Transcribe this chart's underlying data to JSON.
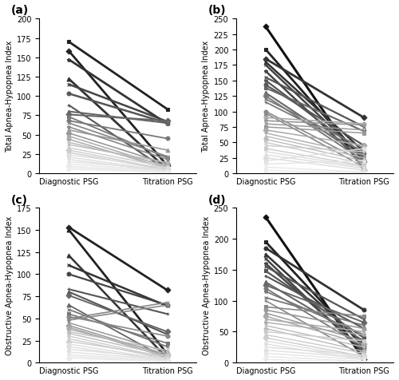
{
  "panels": [
    {
      "label": "(a)",
      "ylabel": "Total Apnea-Hypopnea Index",
      "ylim": [
        0,
        200
      ],
      "yticks": [
        0,
        25,
        50,
        75,
        100,
        125,
        150,
        175,
        200
      ],
      "series": [
        {
          "diag": 170,
          "titr": 83,
          "marker": "s",
          "color": "#222222",
          "lw": 2.0
        },
        {
          "diag": 158,
          "titr": 10,
          "marker": "D",
          "color": "#222222",
          "lw": 2.0
        },
        {
          "diag": 147,
          "titr": 64,
          "marker": "*",
          "color": "#333333",
          "lw": 2.0
        },
        {
          "diag": 122,
          "titr": 5,
          "marker": "^",
          "color": "#333333",
          "lw": 2.0
        },
        {
          "diag": 115,
          "titr": 67,
          "marker": "x",
          "color": "#444444",
          "lw": 1.8
        },
        {
          "diag": 103,
          "titr": 65,
          "marker": "o",
          "color": "#555555",
          "lw": 1.8
        },
        {
          "diag": 88,
          "titr": 4,
          "marker": "+",
          "color": "#555555",
          "lw": 1.5
        },
        {
          "diag": 80,
          "titr": 65,
          "marker": "^",
          "color": "#666666",
          "lw": 1.5
        },
        {
          "diag": 76,
          "titr": 68,
          "marker": "D",
          "color": "#666666",
          "lw": 1.5
        },
        {
          "diag": 73,
          "titr": 20,
          "marker": "s",
          "color": "#777777",
          "lw": 1.3
        },
        {
          "diag": 68,
          "titr": 45,
          "marker": "o",
          "color": "#777777",
          "lw": 1.3
        },
        {
          "diag": 65,
          "titr": 22,
          "marker": "x",
          "color": "#888888",
          "lw": 1.3
        },
        {
          "diag": 60,
          "titr": 18,
          "marker": "*",
          "color": "#888888",
          "lw": 1.2
        },
        {
          "diag": 56,
          "titr": 30,
          "marker": "^",
          "color": "#999999",
          "lw": 1.2
        },
        {
          "diag": 52,
          "titr": 12,
          "marker": "D",
          "color": "#999999",
          "lw": 1.2
        },
        {
          "diag": 48,
          "titr": 8,
          "marker": "s",
          "color": "#aaaaaa",
          "lw": 1.1
        },
        {
          "diag": 44,
          "titr": 6,
          "marker": "o",
          "color": "#aaaaaa",
          "lw": 1.1
        },
        {
          "diag": 40,
          "titr": 10,
          "marker": "+",
          "color": "#bbbbbb",
          "lw": 1.1
        },
        {
          "diag": 37,
          "titr": 14,
          "marker": "x",
          "color": "#bbbbbb",
          "lw": 1.0
        },
        {
          "diag": 33,
          "titr": 8,
          "marker": "^",
          "color": "#cccccc",
          "lw": 1.0
        },
        {
          "diag": 30,
          "titr": 5,
          "marker": "D",
          "color": "#cccccc",
          "lw": 1.0
        },
        {
          "diag": 27,
          "titr": 4,
          "marker": "s",
          "color": "#cccccc",
          "lw": 1.0
        },
        {
          "diag": 24,
          "titr": 7,
          "marker": "o",
          "color": "#dddddd",
          "lw": 1.0
        },
        {
          "diag": 21,
          "titr": 3,
          "marker": "*",
          "color": "#dddddd",
          "lw": 1.0
        },
        {
          "diag": 18,
          "titr": 2,
          "marker": "x",
          "color": "#dddddd",
          "lw": 1.0
        },
        {
          "diag": 15,
          "titr": 5,
          "marker": "+",
          "color": "#e0e0e0",
          "lw": 1.0
        },
        {
          "diag": 12,
          "titr": 3,
          "marker": "^",
          "color": "#e5e5e5",
          "lw": 1.0
        },
        {
          "diag": 9,
          "titr": 2,
          "marker": "D",
          "color": "#e8e8e8",
          "lw": 1.0
        },
        {
          "diag": 7,
          "titr": 1,
          "marker": "s",
          "color": "#ebebeb",
          "lw": 1.0
        },
        {
          "diag": 5,
          "titr": 1,
          "marker": "o",
          "color": "#eeeeee",
          "lw": 1.0
        }
      ]
    },
    {
      "label": "(b)",
      "ylabel": "Total Apnea-Hypopnea Index",
      "ylim": [
        0,
        250
      ],
      "yticks": [
        0,
        25,
        50,
        75,
        100,
        125,
        150,
        175,
        200,
        225,
        250
      ],
      "series": [
        {
          "diag": 237,
          "titr": 5,
          "marker": "D",
          "color": "#111111",
          "lw": 2.2
        },
        {
          "diag": 200,
          "titr": 20,
          "marker": "s",
          "color": "#222222",
          "lw": 2.0
        },
        {
          "diag": 185,
          "titr": 90,
          "marker": "D",
          "color": "#333333",
          "lw": 2.0
        },
        {
          "diag": 180,
          "titr": 35,
          "marker": "^",
          "color": "#333333",
          "lw": 1.8
        },
        {
          "diag": 175,
          "titr": 25,
          "marker": "x",
          "color": "#444444",
          "lw": 1.8
        },
        {
          "diag": 165,
          "titr": 15,
          "marker": "*",
          "color": "#444444",
          "lw": 1.8
        },
        {
          "diag": 155,
          "titr": 75,
          "marker": "x",
          "color": "#555555",
          "lw": 1.6
        },
        {
          "diag": 150,
          "titr": 30,
          "marker": "*",
          "color": "#555555",
          "lw": 1.6
        },
        {
          "diag": 143,
          "titr": 45,
          "marker": "o",
          "color": "#555555",
          "lw": 1.5
        },
        {
          "diag": 138,
          "titr": 68,
          "marker": "s",
          "color": "#666666",
          "lw": 1.5
        },
        {
          "diag": 130,
          "titr": 25,
          "marker": "^",
          "color": "#666666",
          "lw": 1.5
        },
        {
          "diag": 125,
          "titr": 20,
          "marker": "D",
          "color": "#777777",
          "lw": 1.4
        },
        {
          "diag": 120,
          "titr": 40,
          "marker": "x",
          "color": "#777777",
          "lw": 1.3
        },
        {
          "diag": 115,
          "titr": 35,
          "marker": "+",
          "color": "#777777",
          "lw": 1.3
        },
        {
          "diag": 100,
          "titr": 18,
          "marker": "o",
          "color": "#888888",
          "lw": 1.2
        },
        {
          "diag": 97,
          "titr": 10,
          "marker": "^",
          "color": "#888888",
          "lw": 1.2
        },
        {
          "diag": 90,
          "titr": 80,
          "marker": "o",
          "color": "#aaaaaa",
          "lw": 1.2
        },
        {
          "diag": 85,
          "titr": 78,
          "marker": "*",
          "color": "#999999",
          "lw": 1.2
        },
        {
          "diag": 80,
          "titr": 70,
          "marker": "x",
          "color": "#999999",
          "lw": 1.1
        },
        {
          "diag": 75,
          "titr": 65,
          "marker": "s",
          "color": "#999999",
          "lw": 1.1
        },
        {
          "diag": 70,
          "titr": 45,
          "marker": "D",
          "color": "#aaaaaa",
          "lw": 1.1
        },
        {
          "diag": 65,
          "titr": 30,
          "marker": "+",
          "color": "#aaaaaa",
          "lw": 1.0
        },
        {
          "diag": 60,
          "titr": 25,
          "marker": "^",
          "color": "#bbbbbb",
          "lw": 1.0
        },
        {
          "diag": 55,
          "titr": 20,
          "marker": "o",
          "color": "#bbbbbb",
          "lw": 1.0
        },
        {
          "diag": 50,
          "titr": 15,
          "marker": "*",
          "color": "#cccccc",
          "lw": 1.0
        },
        {
          "diag": 45,
          "titr": 35,
          "marker": "x",
          "color": "#cccccc",
          "lw": 1.0
        },
        {
          "diag": 40,
          "titr": 12,
          "marker": "s",
          "color": "#cccccc",
          "lw": 1.0
        },
        {
          "diag": 35,
          "titr": 10,
          "marker": "+",
          "color": "#dddddd",
          "lw": 1.0
        },
        {
          "diag": 30,
          "titr": 8,
          "marker": "^",
          "color": "#dddddd",
          "lw": 1.0
        },
        {
          "diag": 25,
          "titr": 5,
          "marker": "D",
          "color": "#dddddd",
          "lw": 1.0
        },
        {
          "diag": 20,
          "titr": 40,
          "marker": "o",
          "color": "#e0e0e0",
          "lw": 1.0
        },
        {
          "diag": 15,
          "titr": 20,
          "marker": "*",
          "color": "#e5e5e5",
          "lw": 1.0
        },
        {
          "diag": 10,
          "titr": 2,
          "marker": "x",
          "color": "#e8e8e8",
          "lw": 1.0
        },
        {
          "diag": 5,
          "titr": 0,
          "marker": "s",
          "color": "#ebebeb",
          "lw": 1.0
        },
        {
          "diag": 1,
          "titr": 0,
          "marker": "o",
          "color": "#eeeeee",
          "lw": 1.0
        }
      ]
    },
    {
      "label": "(c)",
      "ylabel": "Obstructive Apnea-Hypopnea Index",
      "ylim": [
        0,
        175
      ],
      "yticks": [
        0,
        25,
        50,
        75,
        100,
        125,
        150,
        175
      ],
      "series": [
        {
          "diag": 153,
          "titr": 82,
          "marker": "D",
          "color": "#222222",
          "lw": 2.0
        },
        {
          "diag": 150,
          "titr": 10,
          "marker": "^",
          "color": "#222222",
          "lw": 2.0
        },
        {
          "diag": 121,
          "titr": 5,
          "marker": "^",
          "color": "#333333",
          "lw": 1.8
        },
        {
          "diag": 110,
          "titr": 64,
          "marker": "x",
          "color": "#333333",
          "lw": 1.8
        },
        {
          "diag": 100,
          "titr": 65,
          "marker": "o",
          "color": "#444444",
          "lw": 1.6
        },
        {
          "diag": 83,
          "titr": 55,
          "marker": "+",
          "color": "#555555",
          "lw": 1.5
        },
        {
          "diag": 80,
          "titr": 32,
          "marker": "^",
          "color": "#555555",
          "lw": 1.5
        },
        {
          "diag": 76,
          "titr": 35,
          "marker": "D",
          "color": "#666666",
          "lw": 1.4
        },
        {
          "diag": 65,
          "titr": 4,
          "marker": "^",
          "color": "#666666",
          "lw": 1.3
        },
        {
          "diag": 60,
          "titr": 18,
          "marker": "x",
          "color": "#777777",
          "lw": 1.3
        },
        {
          "diag": 55,
          "titr": 22,
          "marker": "s",
          "color": "#777777",
          "lw": 1.2
        },
        {
          "diag": 52,
          "titr": 30,
          "marker": "o",
          "color": "#888888",
          "lw": 1.2
        },
        {
          "diag": 50,
          "titr": 68,
          "marker": "x",
          "color": "#888888",
          "lw": 1.2
        },
        {
          "diag": 48,
          "titr": 65,
          "marker": "*",
          "color": "#888888",
          "lw": 1.2
        },
        {
          "diag": 45,
          "titr": 12,
          "marker": "+",
          "color": "#999999",
          "lw": 1.1
        },
        {
          "diag": 42,
          "titr": 8,
          "marker": "D",
          "color": "#999999",
          "lw": 1.1
        },
        {
          "diag": 40,
          "titr": 6,
          "marker": "s",
          "color": "#aaaaaa",
          "lw": 1.1
        },
        {
          "diag": 38,
          "titr": 10,
          "marker": "o",
          "color": "#aaaaaa",
          "lw": 1.1
        },
        {
          "diag": 35,
          "titr": 14,
          "marker": "^",
          "color": "#bbbbbb",
          "lw": 1.0
        },
        {
          "diag": 33,
          "titr": 8,
          "marker": "x",
          "color": "#bbbbbb",
          "lw": 1.0
        },
        {
          "diag": 30,
          "titr": 5,
          "marker": "*",
          "color": "#cccccc",
          "lw": 1.0
        },
        {
          "diag": 27,
          "titr": 4,
          "marker": "+",
          "color": "#cccccc",
          "lw": 1.0
        },
        {
          "diag": 24,
          "titr": 7,
          "marker": "D",
          "color": "#cccccc",
          "lw": 1.0
        },
        {
          "diag": 21,
          "titr": 3,
          "marker": "s",
          "color": "#dddddd",
          "lw": 1.0
        },
        {
          "diag": 18,
          "titr": 2,
          "marker": "o",
          "color": "#dddddd",
          "lw": 1.0
        },
        {
          "diag": 15,
          "titr": 5,
          "marker": "^",
          "color": "#dddddd",
          "lw": 1.0
        },
        {
          "diag": 12,
          "titr": 3,
          "marker": "x",
          "color": "#e0e0e0",
          "lw": 1.0
        },
        {
          "diag": 9,
          "titr": 2,
          "marker": "*",
          "color": "#e5e5e5",
          "lw": 1.0
        },
        {
          "diag": 7,
          "titr": 1,
          "marker": "+",
          "color": "#e8e8e8",
          "lw": 1.0
        },
        {
          "diag": 5,
          "titr": 1,
          "marker": "D",
          "color": "#ebebeb",
          "lw": 1.0
        }
      ]
    },
    {
      "label": "(d)",
      "ylabel": "Obstructive Apnea-Hypopnea Index",
      "ylim": [
        0,
        250
      ],
      "yticks": [
        0,
        50,
        100,
        150,
        200,
        250
      ],
      "series": [
        {
          "diag": 235,
          "titr": 5,
          "marker": "D",
          "color": "#111111",
          "lw": 2.2
        },
        {
          "diag": 195,
          "titr": 25,
          "marker": "s",
          "color": "#222222",
          "lw": 2.0
        },
        {
          "diag": 185,
          "titr": 85,
          "marker": "o",
          "color": "#333333",
          "lw": 2.0
        },
        {
          "diag": 175,
          "titr": 30,
          "marker": "^",
          "color": "#333333",
          "lw": 1.8
        },
        {
          "diag": 168,
          "titr": 15,
          "marker": "x",
          "color": "#444444",
          "lw": 1.8
        },
        {
          "diag": 160,
          "titr": 20,
          "marker": "*",
          "color": "#444444",
          "lw": 1.8
        },
        {
          "diag": 155,
          "titr": 70,
          "marker": "x",
          "color": "#555555",
          "lw": 1.6
        },
        {
          "diag": 148,
          "titr": 40,
          "marker": "s",
          "color": "#555555",
          "lw": 1.6
        },
        {
          "diag": 140,
          "titr": 55,
          "marker": "+",
          "color": "#555555",
          "lw": 1.5
        },
        {
          "diag": 130,
          "titr": 35,
          "marker": "^",
          "color": "#666666",
          "lw": 1.5
        },
        {
          "diag": 125,
          "titr": 65,
          "marker": "D",
          "color": "#666666",
          "lw": 1.4
        },
        {
          "diag": 120,
          "titr": 25,
          "marker": "o",
          "color": "#777777",
          "lw": 1.3
        },
        {
          "diag": 115,
          "titr": 45,
          "marker": "*",
          "color": "#777777",
          "lw": 1.3
        },
        {
          "diag": 105,
          "titr": 60,
          "marker": "x",
          "color": "#777777",
          "lw": 1.3
        },
        {
          "diag": 100,
          "titr": 10,
          "marker": "+",
          "color": "#888888",
          "lw": 1.2
        },
        {
          "diag": 90,
          "titr": 75,
          "marker": "s",
          "color": "#888888",
          "lw": 1.2
        },
        {
          "diag": 85,
          "titr": 55,
          "marker": "o",
          "color": "#999999",
          "lw": 1.2
        },
        {
          "diag": 80,
          "titr": 35,
          "marker": "^",
          "color": "#999999",
          "lw": 1.1
        },
        {
          "diag": 75,
          "titr": 30,
          "marker": "D",
          "color": "#aaaaaa",
          "lw": 1.1
        },
        {
          "diag": 70,
          "titr": 50,
          "marker": "x",
          "color": "#aaaaaa",
          "lw": 1.1
        },
        {
          "diag": 65,
          "titr": 45,
          "marker": "*",
          "color": "#aaaaaa",
          "lw": 1.0
        },
        {
          "diag": 60,
          "titr": 25,
          "marker": "+",
          "color": "#bbbbbb",
          "lw": 1.0
        },
        {
          "diag": 55,
          "titr": 18,
          "marker": "o",
          "color": "#bbbbbb",
          "lw": 1.0
        },
        {
          "diag": 50,
          "titr": 35,
          "marker": "s",
          "color": "#cccccc",
          "lw": 1.0
        },
        {
          "diag": 45,
          "titr": 15,
          "marker": "^",
          "color": "#cccccc",
          "lw": 1.0
        },
        {
          "diag": 40,
          "titr": 10,
          "marker": "D",
          "color": "#cccccc",
          "lw": 1.0
        },
        {
          "diag": 35,
          "titr": 8,
          "marker": "x",
          "color": "#dddddd",
          "lw": 1.0
        },
        {
          "diag": 30,
          "titr": 5,
          "marker": "*",
          "color": "#dddddd",
          "lw": 1.0
        },
        {
          "diag": 25,
          "titr": 12,
          "marker": "+",
          "color": "#dddddd",
          "lw": 1.0
        },
        {
          "diag": 20,
          "titr": 8,
          "marker": "o",
          "color": "#e0e0e0",
          "lw": 1.0
        },
        {
          "diag": 15,
          "titr": 5,
          "marker": "s",
          "color": "#e5e5e5",
          "lw": 1.0
        },
        {
          "diag": 10,
          "titr": 2,
          "marker": "^",
          "color": "#e8e8e8",
          "lw": 1.0
        },
        {
          "diag": 5,
          "titr": 1,
          "marker": "D",
          "color": "#ebebeb",
          "lw": 1.0
        }
      ]
    }
  ],
  "xlabel": "",
  "xtick_labels": [
    "Diagnostic PSG",
    "Titration PSG"
  ],
  "xtick_positions": [
    0,
    1
  ],
  "background_color": "#ffffff",
  "spine_color": "#000000",
  "tick_fontsize": 7,
  "label_fontsize": 7,
  "panel_label_fontsize": 10
}
